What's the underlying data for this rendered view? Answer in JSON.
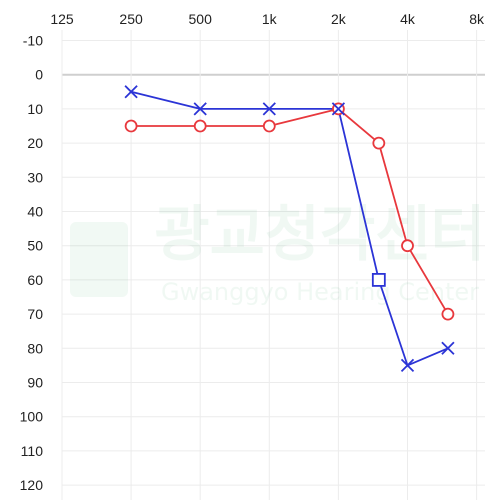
{
  "chart_data": {
    "type": "line",
    "title": "",
    "xlabel": "",
    "ylabel": "",
    "x_scale": "log2",
    "x_ticks": [
      125,
      250,
      500,
      1000,
      2000,
      4000,
      8000
    ],
    "x_tick_labels": [
      "125",
      "250",
      "500",
      "1k",
      "2k",
      "4k",
      "8k"
    ],
    "y_inverted": true,
    "ylim": [
      -10,
      120
    ],
    "y_ticks": [
      -10,
      0,
      10,
      20,
      30,
      40,
      50,
      60,
      70,
      80,
      90,
      100,
      110,
      120
    ],
    "y_tick_labels": [
      "-10",
      "0",
      "10",
      "20",
      "30",
      "40",
      "50",
      "60",
      "70",
      "80",
      "90",
      "100",
      "110",
      "120"
    ],
    "grid": true,
    "legend": "none",
    "series": [
      {
        "color": "#e8383d",
        "marker": "circle",
        "points": [
          {
            "x": 250,
            "y": 15
          },
          {
            "x": 500,
            "y": 15
          },
          {
            "x": 1000,
            "y": 15
          },
          {
            "x": 2000,
            "y": 10
          },
          {
            "x": 3000,
            "y": 20
          },
          {
            "x": 4000,
            "y": 50
          },
          {
            "x": 6000,
            "y": 70
          }
        ]
      },
      {
        "color": "#2b34d6",
        "marker": "cross",
        "points": [
          {
            "x": 250,
            "y": 5,
            "marker": "cross"
          },
          {
            "x": 500,
            "y": 10,
            "marker": "cross"
          },
          {
            "x": 1000,
            "y": 10,
            "marker": "cross"
          },
          {
            "x": 2000,
            "y": 10,
            "marker": "cross"
          },
          {
            "x": 3000,
            "y": 60,
            "marker": "square"
          },
          {
            "x": 4000,
            "y": 85,
            "marker": "cross"
          },
          {
            "x": 6000,
            "y": 80,
            "marker": "cross"
          }
        ]
      }
    ]
  },
  "watermark": {
    "text": "광교청각센터",
    "subtext": "Gwanggyo Hearing Center"
  }
}
